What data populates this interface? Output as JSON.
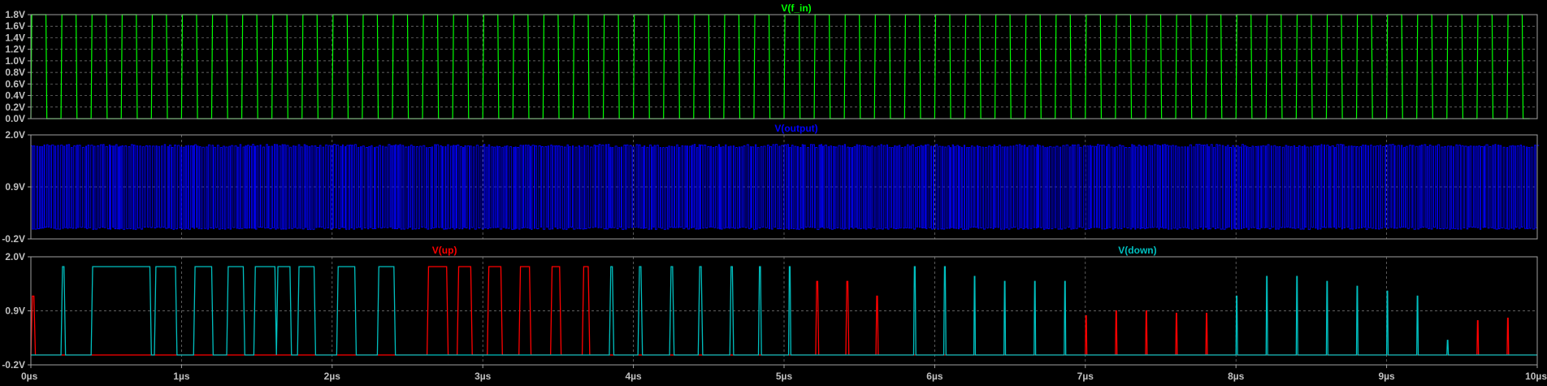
{
  "chart_data": [
    {
      "type": "line",
      "title": "V(f_in)",
      "ylim": [
        0,
        1.8
      ],
      "xlim": [
        0,
        10
      ],
      "y_ticks": [
        "1.8V",
        "1.6V",
        "1.4V",
        "1.2V",
        "1.0V",
        "0.8V",
        "0.6V",
        "0.4V",
        "0.2V",
        "0.0V"
      ],
      "x_ticks": [],
      "grid": true,
      "series": [
        {
          "name": "V(f_in)",
          "color": "#00ff00",
          "waveform": "square",
          "low": 0.0,
          "high": 1.8,
          "period_us": 0.2,
          "duty": 0.5,
          "start_us": 0.0,
          "end_us": 9.95
        }
      ]
    },
    {
      "type": "line",
      "title": "V(output)",
      "ylim": [
        -0.2,
        2.0
      ],
      "xlim": [
        0,
        10
      ],
      "y_ticks": [
        "2.0V",
        "0.9V",
        "-0.2V"
      ],
      "x_ticks": [],
      "grid": true,
      "series": [
        {
          "name": "V(output)",
          "color": "#0000ff",
          "waveform": "dense-oscillation",
          "low": 0.0,
          "high": 1.8,
          "start_us": 0.0,
          "end_us": 10.0
        }
      ]
    },
    {
      "type": "line",
      "title": "",
      "ylim": [
        -0.2,
        2.0
      ],
      "xlim": [
        0,
        10
      ],
      "y_ticks": [
        "2.0V",
        "0.9V",
        "-0.2V"
      ],
      "x_ticks": [
        "0µs",
        "1µs",
        "2µs",
        "3µs",
        "4µs",
        "5µs",
        "6µs",
        "7µs",
        "8µs",
        "9µs",
        "10µs"
      ],
      "grid": true,
      "series": [
        {
          "name": "V(up)",
          "color": "#ff0000",
          "baseline": 0.0,
          "pulses": [
            [
              0.0,
              0.03,
              1.2
            ],
            [
              2.63,
              0.14,
              1.8
            ],
            [
              2.83,
              0.1,
              1.8
            ],
            [
              3.03,
              0.1,
              1.8
            ],
            [
              3.24,
              0.08,
              1.8
            ],
            [
              3.45,
              0.07,
              1.8
            ],
            [
              3.66,
              0.05,
              1.8
            ],
            [
              5.21,
              0.02,
              1.5
            ],
            [
              5.41,
              0.02,
              1.5
            ],
            [
              5.61,
              0.015,
              1.2
            ],
            [
              7.0,
              0.01,
              0.8
            ],
            [
              7.2,
              0.01,
              0.9
            ],
            [
              7.4,
              0.01,
              0.9
            ],
            [
              7.6,
              0.01,
              0.85
            ],
            [
              7.8,
              0.01,
              0.85
            ],
            [
              9.6,
              0.01,
              0.7
            ],
            [
              9.8,
              0.01,
              0.75
            ]
          ]
        },
        {
          "name": "V(down)",
          "color": "#00c0c0",
          "baseline": 0.0,
          "pulses": [
            [
              0.2,
              0.03,
              1.8
            ],
            [
              0.4,
              0.4,
              1.8
            ],
            [
              0.82,
              0.15,
              1.8
            ],
            [
              1.08,
              0.13,
              1.8
            ],
            [
              1.3,
              0.12,
              1.8
            ],
            [
              1.48,
              0.15,
              1.8
            ],
            [
              1.63,
              0.1,
              1.8
            ],
            [
              1.77,
              0.12,
              1.8
            ],
            [
              2.03,
              0.13,
              1.8
            ],
            [
              2.3,
              0.12,
              1.8
            ],
            [
              3.84,
              0.03,
              1.8
            ],
            [
              4.03,
              0.03,
              1.8
            ],
            [
              4.24,
              0.03,
              1.8
            ],
            [
              4.43,
              0.03,
              1.8
            ],
            [
              4.64,
              0.025,
              1.8
            ],
            [
              4.83,
              0.02,
              1.8
            ],
            [
              5.03,
              0.015,
              1.8
            ],
            [
              5.86,
              0.015,
              1.8
            ],
            [
              6.06,
              0.015,
              1.8
            ],
            [
              6.26,
              0.01,
              1.6
            ],
            [
              6.46,
              0.01,
              1.5
            ],
            [
              6.66,
              0.01,
              1.5
            ],
            [
              6.86,
              0.01,
              1.5
            ],
            [
              8.0,
              0.01,
              1.2
            ],
            [
              8.2,
              0.01,
              1.6
            ],
            [
              8.4,
              0.01,
              1.6
            ],
            [
              8.6,
              0.01,
              1.5
            ],
            [
              8.8,
              0.01,
              1.4
            ],
            [
              9.0,
              0.01,
              1.3
            ],
            [
              9.2,
              0.01,
              1.2
            ],
            [
              9.4,
              0.01,
              0.3
            ]
          ]
        }
      ]
    }
  ]
}
